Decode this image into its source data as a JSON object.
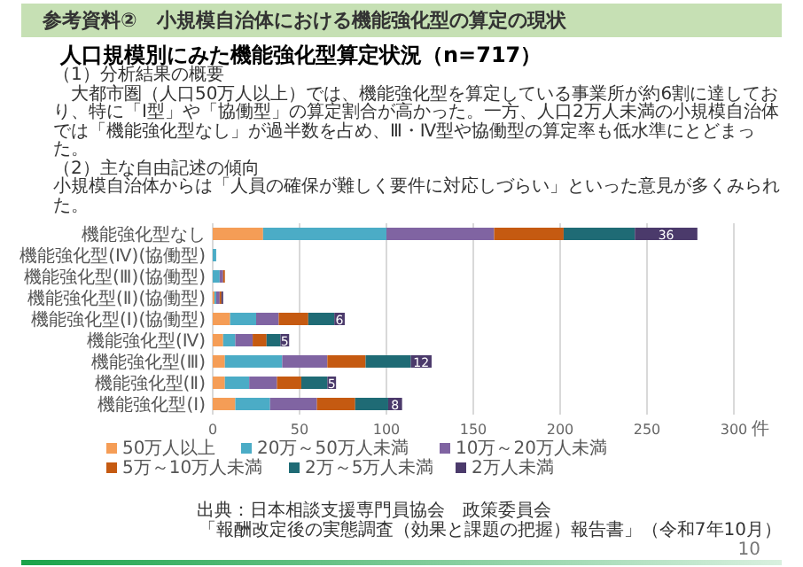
{
  "chart_data": {
    "type": "bar",
    "orientation": "horizontal",
    "stacked": true,
    "title": "参考資料②　小規模自治体における機能強化型の算定の現状",
    "subtitle": "人口規模別にみた機能強化型算定状況（n=717）",
    "annotations": [
      "（1）分析結果の概要",
      "　大都市圏（人口50万人以上）では、機能強化型を算定している事業所が約6割に達しており、特に「Ⅰ型」や「協働型」の算定割合が高かった。一方、人口2万人未満の小規模自治体では「機能強化型なし」が過半数を占め、Ⅲ・Ⅳ型や協働型の算定率も低水準にとどまった。",
      "（2）主な自由記述の傾向",
      "小規模自治体からは「人員の確保が難しく要件に対応しづらい」といった意見が多くみられた。",
      "出典：日本相談支援専門員協会　政策委員会",
      "「報酬改定後の実態調査（効果と課題の把握）報告書」（令和7年10月）",
      "10"
    ],
    "categories": [
      "機能強化型なし",
      "機能強化型(Ⅳ)(協働型)",
      "機能強化型(Ⅲ)(協働型)",
      "機能強化型(Ⅱ)(協働型)",
      "機能強化型(Ⅰ)(協働型)",
      "機能強化型(Ⅳ)",
      "機能強化型(Ⅲ)",
      "機能強化型(Ⅱ)",
      "機能強化型(Ⅰ)"
    ],
    "series": [
      {
        "name": "50万人以上",
        "color": "#f59d56",
        "values": [
          29,
          0,
          0,
          1,
          10,
          6,
          7,
          7,
          13
        ]
      },
      {
        "name": "20万～50万人未満",
        "color": "#4bacc6",
        "values": [
          71,
          2,
          4,
          1,
          15,
          7,
          33,
          14,
          20
        ]
      },
      {
        "name": "10万～20万人未満",
        "color": "#8064a2",
        "values": [
          62,
          0,
          2,
          2,
          13,
          10,
          26,
          16,
          27
        ]
      },
      {
        "name": "5万～10万人未満",
        "color": "#c55a11",
        "values": [
          40,
          0,
          1,
          1,
          17,
          8,
          22,
          14,
          22
        ]
      },
      {
        "name": "2万～5万人未満",
        "color": "#1f6b75",
        "values": [
          41,
          0,
          0,
          0,
          15,
          8,
          26,
          15,
          19
        ]
      },
      {
        "name": "2万人未満",
        "color": "#4b3a6b",
        "values": [
          36,
          0,
          0,
          1,
          6,
          5,
          12,
          5,
          8
        ],
        "value_labels": [
          "36",
          null,
          null,
          null,
          "6",
          "5",
          "12",
          "5",
          "8"
        ]
      }
    ],
    "xlim": [
      0,
      300
    ],
    "xticks": [
      0,
      50,
      100,
      150,
      200,
      250,
      300
    ],
    "xlabel": "件",
    "grid": "x",
    "legend": "bottom"
  }
}
